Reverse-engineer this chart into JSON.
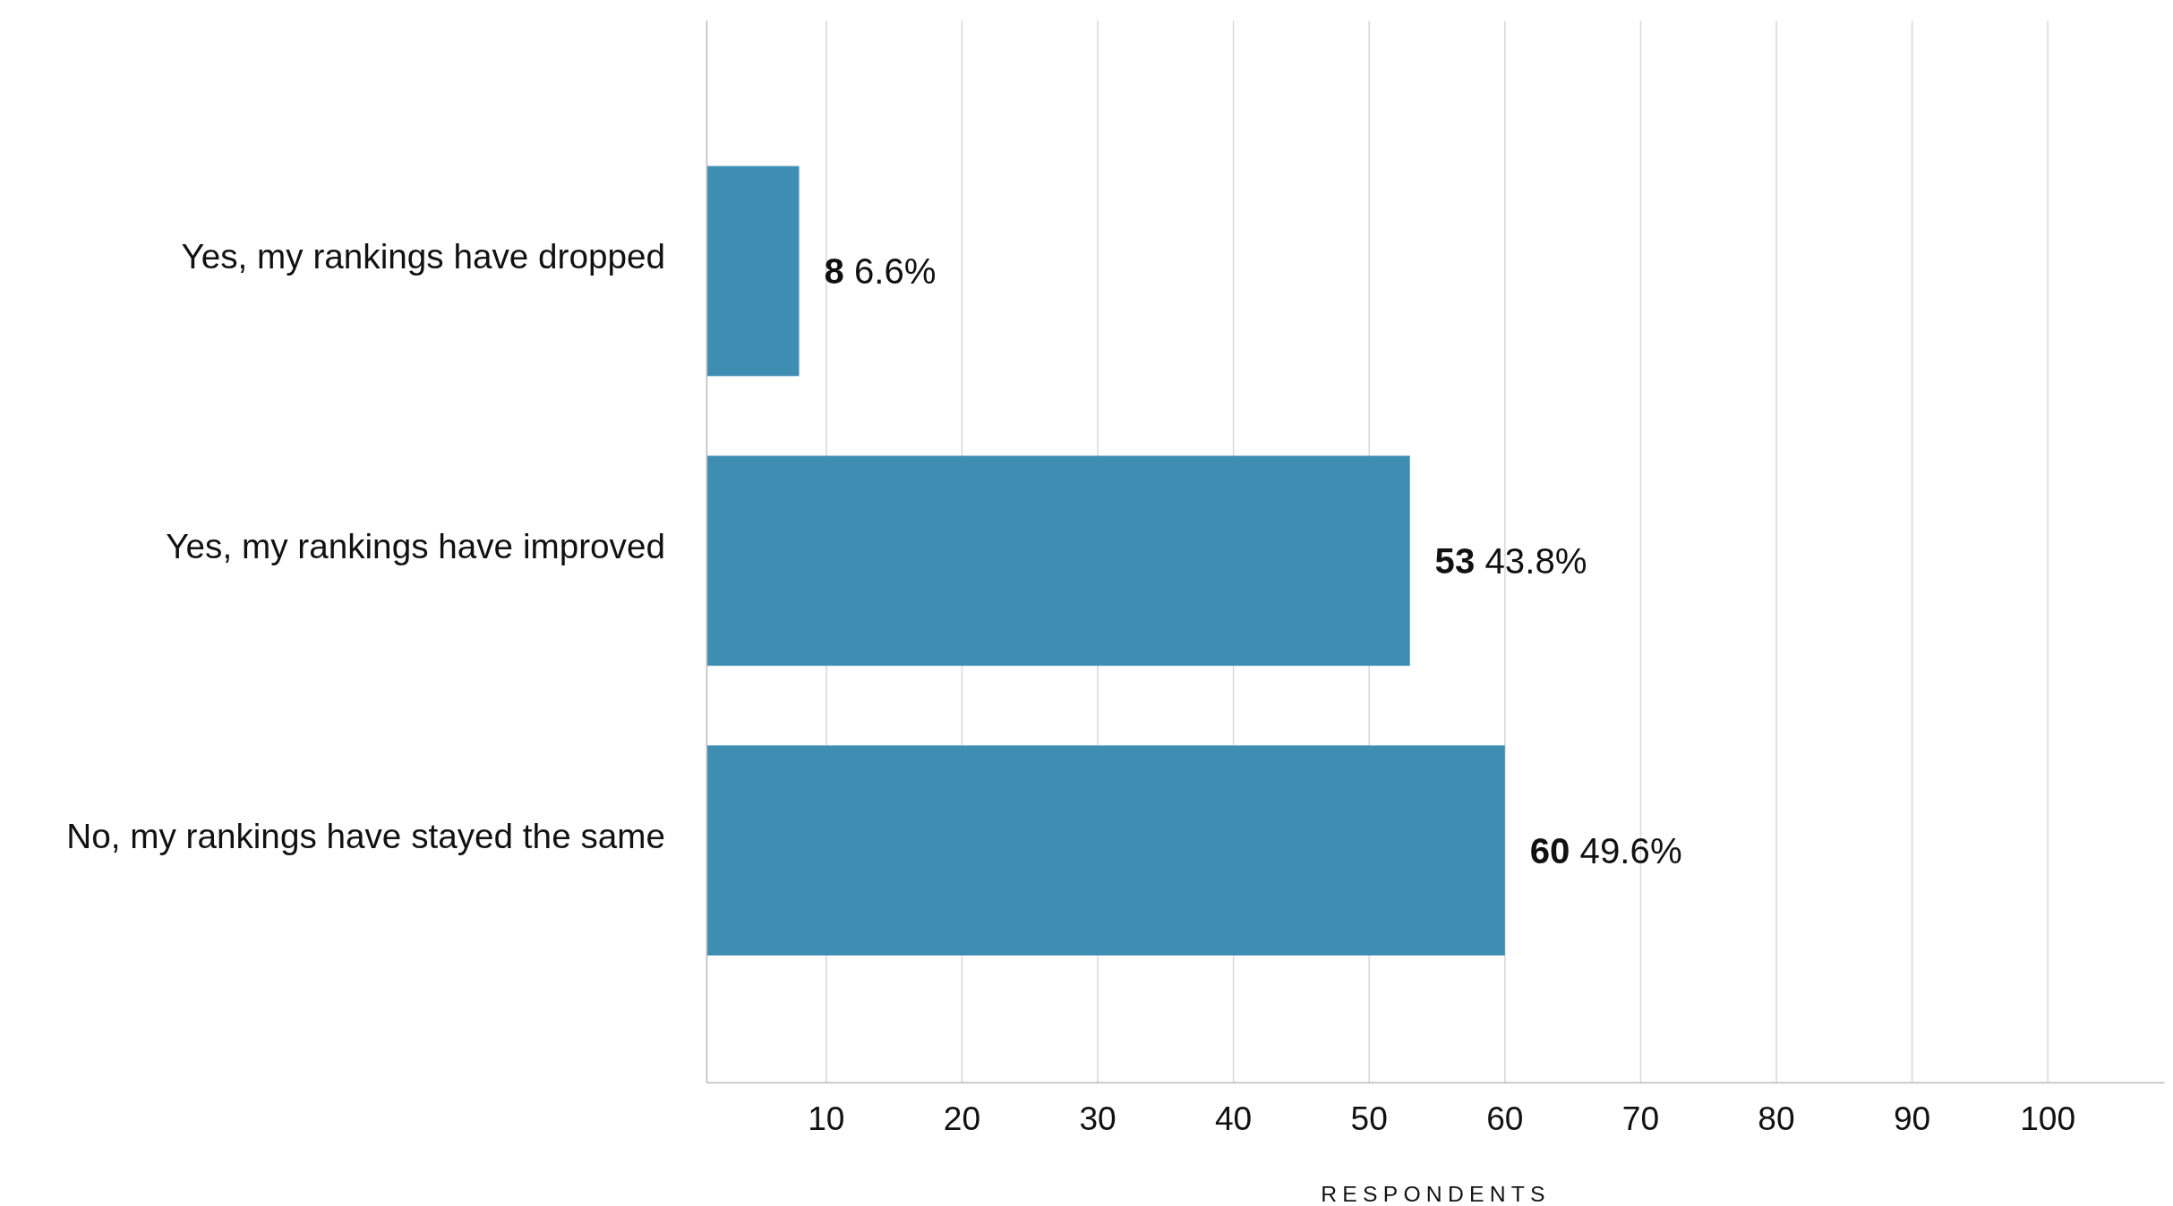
{
  "chart_data": {
    "type": "bar",
    "orientation": "horizontal",
    "xlabel": "RESPONDENTS",
    "categories": [
      "Yes, my rankings have dropped",
      "Yes, my rankings have improved",
      "No, my rankings have stayed the same"
    ],
    "values": [
      8,
      53,
      60
    ],
    "color": "#3e8db3",
    "value_labels": [
      "8 6.6%",
      "53 43.8%",
      "60 49.6%"
    ],
    "xlim": [
      1.2,
      108.6
    ],
    "xticks": [
      10,
      20,
      30,
      40,
      50,
      60,
      70,
      80,
      90,
      100
    ],
    "grid": "x"
  }
}
